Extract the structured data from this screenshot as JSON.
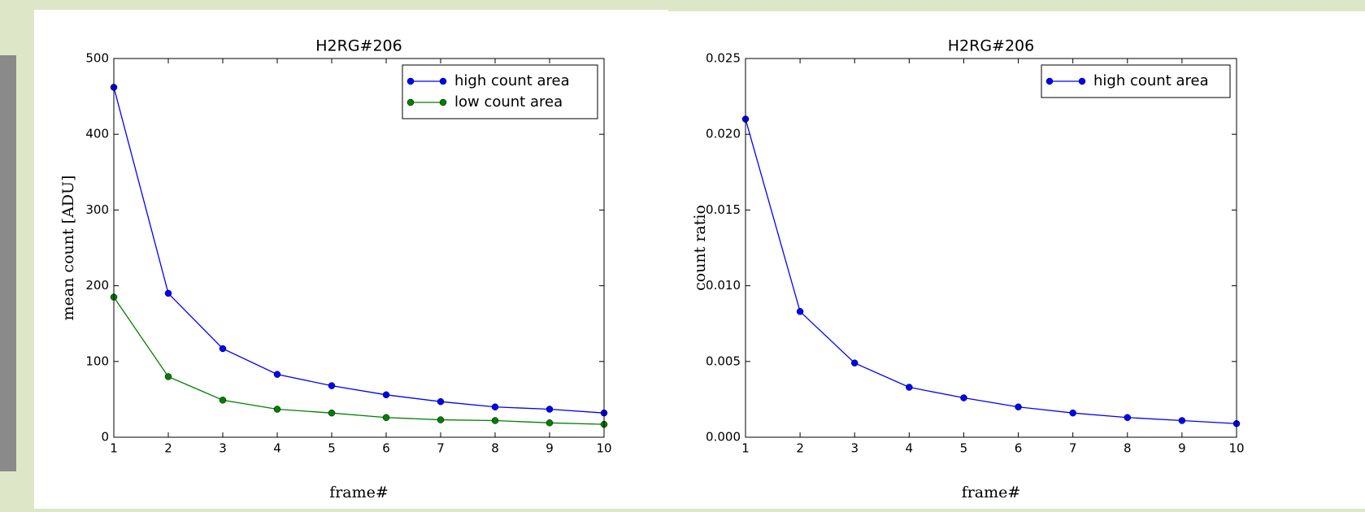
{
  "chart_data": [
    {
      "type": "line",
      "title": "H2RG#206",
      "x_label": "frame#",
      "y_label": "mean count [ADU]",
      "x": [
        1,
        2,
        3,
        4,
        5,
        6,
        7,
        8,
        9,
        10
      ],
      "series": [
        {
          "name": "high count area",
          "color": "#0000ff",
          "values": [
            462,
            190,
            117,
            83,
            68,
            56,
            47,
            40,
            37,
            32
          ]
        },
        {
          "name": "low count area",
          "color": "#008000",
          "values": [
            185,
            80,
            49,
            37,
            32,
            26,
            23,
            22,
            19,
            17
          ]
        }
      ],
      "xlim": [
        1,
        10
      ],
      "xticks": [
        1,
        2,
        3,
        4,
        5,
        6,
        7,
        8,
        9,
        10
      ],
      "ylim": [
        0,
        500
      ],
      "yticks": [
        0,
        100,
        200,
        300,
        400,
        500
      ],
      "grid": false,
      "legend": "upper-right"
    },
    {
      "type": "line",
      "title": "H2RG#206",
      "x_label": "frame#",
      "y_label": "count ratio",
      "x": [
        1,
        2,
        3,
        4,
        5,
        6,
        7,
        8,
        9,
        10
      ],
      "series": [
        {
          "name": "high count area",
          "color": "#0000ff",
          "values": [
            0.021,
            0.0083,
            0.0049,
            0.0033,
            0.0026,
            0.002,
            0.0016,
            0.0013,
            0.0011,
            0.0009
          ]
        }
      ],
      "xlim": [
        1,
        10
      ],
      "xticks": [
        1,
        2,
        3,
        4,
        5,
        6,
        7,
        8,
        9,
        10
      ],
      "ylim": [
        0,
        0.025
      ],
      "yticks": [
        {
          "value": 0,
          "label": "0.000"
        },
        {
          "value": 0.005,
          "label": "0.005"
        },
        {
          "value": 0.01,
          "label": "0.010"
        },
        {
          "value": 0.015,
          "label": "0.015"
        },
        {
          "value": 0.02,
          "label": "0.020"
        },
        {
          "value": 0.025,
          "label": "0.025"
        }
      ],
      "grid": false,
      "legend": "upper-right"
    }
  ]
}
